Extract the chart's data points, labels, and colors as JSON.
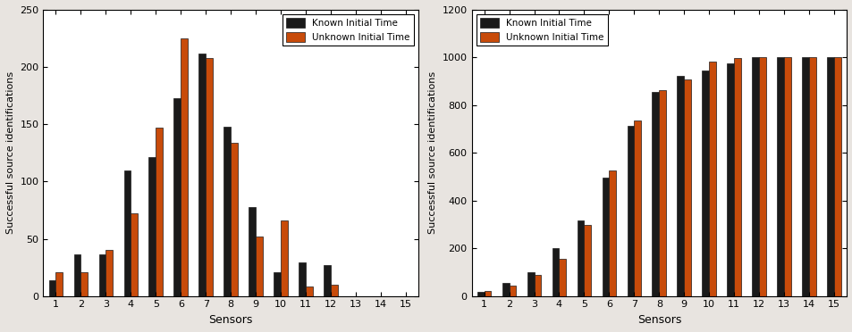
{
  "sensors": [
    1,
    2,
    3,
    4,
    5,
    6,
    7,
    8,
    9,
    10,
    11,
    12,
    13,
    14,
    15
  ],
  "left_known": [
    14,
    36,
    36,
    110,
    121,
    173,
    212,
    148,
    78,
    21,
    29,
    27,
    0,
    0,
    0
  ],
  "left_unknown": [
    21,
    21,
    40,
    72,
    147,
    225,
    208,
    134,
    52,
    66,
    8,
    10,
    0,
    0,
    0
  ],
  "right_known": [
    18,
    55,
    100,
    200,
    315,
    495,
    712,
    855,
    922,
    945,
    975,
    1000,
    1000,
    1000,
    1000
  ],
  "right_unknown": [
    20,
    42,
    88,
    155,
    298,
    527,
    735,
    862,
    908,
    982,
    997,
    1000,
    1000,
    1000,
    1000
  ],
  "bar_width": 0.28,
  "color_known": "#1a1a1a",
  "color_unknown": "#c84b0a",
  "ylabel": "Successful source identifications",
  "xlabel": "Sensors",
  "ylim_left": [
    0,
    250
  ],
  "ylim_right": [
    0,
    1200
  ],
  "yticks_left": [
    0,
    50,
    100,
    150,
    200,
    250
  ],
  "yticks_right": [
    0,
    200,
    400,
    600,
    800,
    1000,
    1200
  ],
  "legend_known": "Known Initial Time",
  "legend_unknown": "Unknown Initial Time",
  "bg_outer": "#e8e4e0",
  "bg_inner": "#ffffff"
}
